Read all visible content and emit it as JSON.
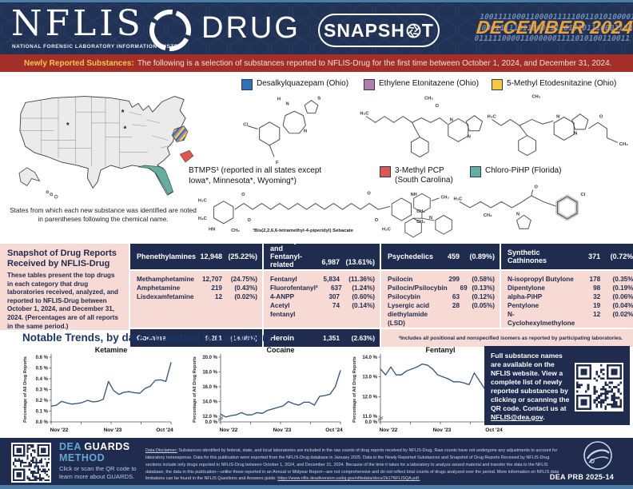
{
  "header": {
    "logo_title": "NFLIS",
    "logo_subtitle": "NATIONAL FORENSIC LABORATORY INFORMATION SYSTEM",
    "logo_product": "DRUG",
    "badge_pre": "SNAPSH",
    "badge_post": "T",
    "edition": "DECEMBER 2024",
    "binary_lines": [
      "10011110001100001111100110101000011110000011100011",
      "10001111101100011110101011100011000001111010100110",
      "01111100001100000011110101001100111000000100111110"
    ]
  },
  "banner": {
    "label": "Newly Reported Substances:",
    "text": "The following is a selection of substances reported to NFLIS-Drug for the first time between October 1, 2024, and December 31, 2024."
  },
  "map": {
    "caption": "States from which each new substance was identified are noted in parentheses following the chemical name.",
    "asterisk": "*",
    "colors": {
      "ohio_blue": "#2d72b8",
      "ohio_purple": "#b07fae",
      "ohio_yellow": "#f8c93e",
      "south_carolina": "#e0564e",
      "florida": "#62b0a2"
    }
  },
  "substances": {
    "legend": [
      {
        "label": "Desalkylquazepam (Ohio)",
        "color": "#2d72b8"
      },
      {
        "label": "Ethylene Etonitazene (Ohio)",
        "color": "#b07fae"
      },
      {
        "label": "5-Methyl Etodesnitazine (Ohio)",
        "color": "#f8c93e"
      },
      {
        "label": "3-Methyl PCP",
        "label2": "(South Carolina)",
        "color": "#e0564e"
      },
      {
        "label": "Chloro-PiHP (Florida)",
        "color": "#62b0a2"
      }
    ],
    "btmps_line1": "BTMPS¹ (reported in all states except",
    "btmps_line2": "Iowa*, Minnesota*, Wyoming*)",
    "btmps_footnote": "¹Bis(2,2,6,6-tetramethyl-4-piperidyl) Sebacate",
    "structures": {
      "desalkylquazepam": [
        "Cl",
        "H",
        "N",
        "S",
        "N",
        "F"
      ],
      "ethylene_etonitazene": [
        "H₃C",
        "CH₃",
        "N",
        "N",
        "O"
      ],
      "methyl_etodesnitazine": [
        "H₃C",
        "CH₃",
        "N",
        "N",
        "O",
        "CH₃"
      ],
      "btmps": [
        "H₃C",
        "H₃C",
        "HN",
        "CH₃",
        "O",
        "O",
        "O",
        "O",
        "NH",
        "CH₃",
        "CH₃",
        "H₃C"
      ],
      "methyl_pcp": [
        "CH₃",
        "N"
      ],
      "chloro_pihp": [
        "H₃C",
        "CH₃",
        "N",
        "O",
        "Cl"
      ]
    }
  },
  "snapshot_table": {
    "title": "Snapshot of Drug Reports Received by NFLIS-Drug",
    "description": "These tables present the top drugs in each category that drug laboratories received, analyzed, and reported to NFLIS-Drug between October 1, 2024, and December 31, 2024. (Percentages are of all reports in the same period.)",
    "columns": [
      {
        "header": "Phenethylamines",
        "header_count": "12,948",
        "header_pct": "(25.22%)",
        "rows": [
          {
            "name": "Methamphetamine",
            "count": "12,707",
            "pct": "(24.75%)"
          },
          {
            "name": "Amphetamine",
            "count": "219",
            "pct": "(0.43%)"
          },
          {
            "name": "Lisdexamfetamine",
            "count": "12",
            "pct": "(0.02%)"
          }
        ],
        "footer": "Cocaine",
        "footer_count": "9,281",
        "footer_pct": "(18.08%)"
      },
      {
        "header": "Fentanyl and Fentanyl-related Compounds",
        "header_count": "6,987",
        "header_pct": "(13.61%)",
        "rows": [
          {
            "name": "Fentanyl",
            "count": "5,834",
            "pct": "(11.36%)"
          },
          {
            "name": "Fluorofentanyl²",
            "count": "637",
            "pct": "(1.24%)"
          },
          {
            "name": "4-ANPP",
            "count": "307",
            "pct": "(0.60%)"
          },
          {
            "name": "Acetyl fentanyl",
            "count": "74",
            "pct": "(0.14%)"
          }
        ],
        "footer": "Heroin",
        "footer_count": "1,351",
        "footer_pct": "(2.63%)"
      },
      {
        "header": "Psychedelics",
        "header_count": "459",
        "header_pct": "(0.89%)",
        "rows": [
          {
            "name": "Psilocin",
            "count": "299",
            "pct": "(0.58%)"
          },
          {
            "name": "Psilocin/Psilocybin",
            "count": "69",
            "pct": "(0.13%)"
          },
          {
            "name": "Psilocybin",
            "count": "63",
            "pct": "(0.12%)"
          },
          {
            "name": "Lysergic acid diethylamide (LSD)",
            "count": "28",
            "pct": "(0.05%)"
          }
        ]
      },
      {
        "header": "Synthetic Cathinones",
        "header_count": "371",
        "header_pct": "(0.72%)",
        "rows": [
          {
            "name": "N-isopropyl Butylone",
            "count": "178",
            "pct": "(0.35%)"
          },
          {
            "name": "Dipentylone",
            "count": "98",
            "pct": "(0.19%)"
          },
          {
            "name": "alpha-PiHP",
            "count": "32",
            "pct": "(0.06%)"
          },
          {
            "name": "Pentylone",
            "count": "19",
            "pct": "(0.04%)"
          },
          {
            "name": "N-Cyclohexylmethylone",
            "count": "12",
            "pct": "(0.02%)"
          }
        ]
      }
    ],
    "footnote": "²Includes all positional and nonspecified isomers as reported by participating laboratories."
  },
  "trends": {
    "title": "Notable Trends, by date Submitted to Laboratory"
  },
  "chart_data": [
    {
      "type": "line",
      "title": "Ketamine",
      "ylabel": "Percentage of All Drug Reports",
      "x_tick_labels": [
        "Nov '22",
        "Nov '23",
        "Oct '24"
      ],
      "ylim": [
        0.0,
        0.6
      ],
      "ytick_step": 0.1,
      "axis_break": false,
      "line_color": "#31507c",
      "values": [
        0.145,
        0.155,
        0.19,
        0.175,
        0.165,
        0.17,
        0.18,
        0.2,
        0.185,
        0.19,
        0.21,
        0.375,
        0.29,
        0.255,
        0.275,
        0.28,
        0.27,
        0.265,
        0.31,
        0.33,
        0.385,
        0.39,
        0.375,
        0.55
      ]
    },
    {
      "type": "line",
      "title": "Cocaine",
      "ylabel": "Percentage of All Drug Reports",
      "x_tick_labels": [
        "Nov '22",
        "Nov '23",
        "Oct '24"
      ],
      "ylim": [
        12.0,
        20.0
      ],
      "ytick_step": 2.0,
      "axis_break": true,
      "line_color": "#31507c",
      "values": [
        12.3,
        11.9,
        12.1,
        12.2,
        12.5,
        12.2,
        12.2,
        12.5,
        12.4,
        12.8,
        13.0,
        13.2,
        13.4,
        14.0,
        13.7,
        13.5,
        13.9,
        13.9,
        13.5,
        14.7,
        14.8,
        15.0,
        16.0,
        18.2
      ]
    },
    {
      "type": "line",
      "title": "Fentanyl",
      "ylabel": "Percentage of All Drug Reports",
      "x_tick_labels": [
        "Nov '22",
        "Nov '23",
        "Oct '24"
      ],
      "ylim": [
        11.0,
        14.0
      ],
      "ytick_step": 1.0,
      "axis_break": true,
      "line_color": "#31507c",
      "values": [
        13.4,
        13.1,
        13.5,
        13.1,
        13.1,
        13.3,
        13.4,
        13.5,
        13.65,
        13.6,
        13.4,
        13.1,
        13.0,
        12.9,
        12.75,
        12.75,
        12.7,
        12.6,
        13.2,
        12.8,
        12.4,
        12.1,
        11.8,
        11.7
      ]
    }
  ],
  "info_box": {
    "text": "Full substance names are available on the NFLIS website. View a complete list of newly reported substances by clicking or scanning the QR code. Contact us at ",
    "link": "NFLIS@dea.gov",
    "suffix": "."
  },
  "guards": {
    "word1": "DEA",
    "word2": "GUARDS",
    "word3": "METHOD",
    "text": "Click or scan the QR code to learn more about GUARDS."
  },
  "disclaimer": {
    "label": "Data Disclaimer:",
    "text": " Substances identified by federal, state, and local laboratories are included in the raw counts of drug reports received by NFLIS-Drug. Raw counts have not undergone any adjustments to account for laboratory nonresponse. Data for this publication were exported from the NFLIS-Drug database in January 2025. Data in the Newly Reported Substances and Snapshot of Drug Reports Received by NFLIS-Drug sections include only drugs reported to NFLIS-Drug between October 1, 2024, and December 31, 2024. Because of the time it takes for a laboratory to analyze seized material and transfer the data to the NFLIS database, the data in this publication—unlike those reported in an Annual or Midyear Report—are not comprehensive and do not reflect total counts of drugs analyzed over the period. More information on NFLIS data limitations can be found in the NFLIS Questions and Answers guide: ",
    "url": "https://www.nflis.deadiversion.usdoj.gov/nflisdata/docs/2k17NFLISQA.pdf."
  },
  "footer": {
    "prb": "DEA PRB 2025-14"
  }
}
